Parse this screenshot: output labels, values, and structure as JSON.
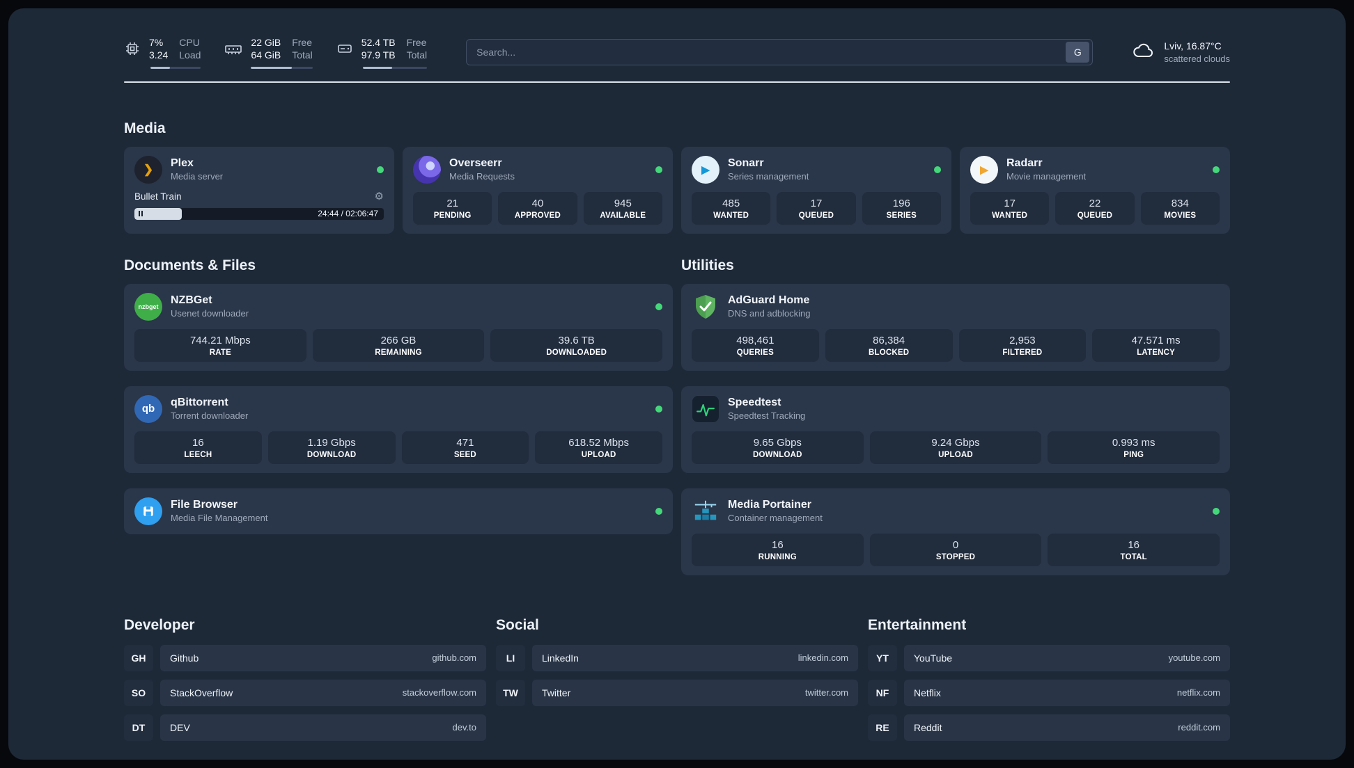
{
  "colors": {
    "status_online": "#44d87b"
  },
  "icons": {
    "plex_glyph": "❯",
    "sonarr_glyph": "▶",
    "radarr_glyph": "▶",
    "nzbget_text": "nzbget",
    "qbittorrent_text": "qb",
    "gear_glyph": "⚙"
  },
  "header": {
    "cpu": {
      "value_top": "7%",
      "value_bottom": "3.24",
      "label_top": "CPU",
      "label_bottom": "Load",
      "progress": 38
    },
    "ram": {
      "value_top": "22 GiB",
      "value_bottom": "64 GiB",
      "label_top": "Free",
      "label_bottom": "Total",
      "progress": 66
    },
    "disk": {
      "value_top": "52.4 TB",
      "value_bottom": "97.9 TB",
      "label_top": "Free",
      "label_bottom": "Total",
      "progress": 46
    },
    "search": {
      "placeholder": "Search...",
      "button": "G"
    },
    "weather": {
      "location": "Lviv, 16.87°C",
      "condition": "scattered clouds"
    }
  },
  "sections": {
    "media": {
      "title": "Media",
      "plex": {
        "name": "Plex",
        "subtitle": "Media server",
        "now_playing": "Bullet Train",
        "time": "24:44 / 02:06:47",
        "progress": 19
      },
      "overseerr": {
        "name": "Overseerr",
        "subtitle": "Media Requests",
        "stats": [
          {
            "value": "21",
            "label": "PENDING"
          },
          {
            "value": "40",
            "label": "APPROVED"
          },
          {
            "value": "945",
            "label": "AVAILABLE"
          }
        ]
      },
      "sonarr": {
        "name": "Sonarr",
        "subtitle": "Series management",
        "stats": [
          {
            "value": "485",
            "label": "WANTED"
          },
          {
            "value": "17",
            "label": "QUEUED"
          },
          {
            "value": "196",
            "label": "SERIES"
          }
        ]
      },
      "radarr": {
        "name": "Radarr",
        "subtitle": "Movie management",
        "stats": [
          {
            "value": "17",
            "label": "WANTED"
          },
          {
            "value": "22",
            "label": "QUEUED"
          },
          {
            "value": "834",
            "label": "MOVIES"
          }
        ]
      }
    },
    "documents": {
      "title": "Documents & Files",
      "nzbget": {
        "name": "NZBGet",
        "subtitle": "Usenet downloader",
        "stats": [
          {
            "value": "744.21 Mbps",
            "label": "RATE"
          },
          {
            "value": "266 GB",
            "label": "REMAINING"
          },
          {
            "value": "39.6 TB",
            "label": "DOWNLOADED"
          }
        ]
      },
      "qbittorrent": {
        "name": "qBittorrent",
        "subtitle": "Torrent downloader",
        "stats": [
          {
            "value": "16",
            "label": "LEECH"
          },
          {
            "value": "1.19 Gbps",
            "label": "DOWNLOAD"
          },
          {
            "value": "471",
            "label": "SEED"
          },
          {
            "value": "618.52 Mbps",
            "label": "UPLOAD"
          }
        ]
      },
      "filebrowser": {
        "name": "File Browser",
        "subtitle": "Media File Management"
      }
    },
    "utilities": {
      "title": "Utilities",
      "adguard": {
        "name": "AdGuard Home",
        "subtitle": "DNS and adblocking",
        "stats": [
          {
            "value": "498,461",
            "label": "QUERIES"
          },
          {
            "value": "86,384",
            "label": "BLOCKED"
          },
          {
            "value": "2,953",
            "label": "FILTERED"
          },
          {
            "value": "47.571 ms",
            "label": "LATENCY"
          }
        ]
      },
      "speedtest": {
        "name": "Speedtest",
        "subtitle": "Speedtest Tracking",
        "stats": [
          {
            "value": "9.65 Gbps",
            "label": "DOWNLOAD"
          },
          {
            "value": "9.24 Gbps",
            "label": "UPLOAD"
          },
          {
            "value": "0.993 ms",
            "label": "PING"
          }
        ]
      },
      "portainer": {
        "name": "Media Portainer",
        "subtitle": "Container management",
        "stats": [
          {
            "value": "16",
            "label": "RUNNING"
          },
          {
            "value": "0",
            "label": "STOPPED"
          },
          {
            "value": "16",
            "label": "TOTAL"
          }
        ]
      }
    },
    "developer": {
      "title": "Developer",
      "links": [
        {
          "abbr": "GH",
          "name": "Github",
          "url": "github.com"
        },
        {
          "abbr": "SO",
          "name": "StackOverflow",
          "url": "stackoverflow.com"
        },
        {
          "abbr": "DT",
          "name": "DEV",
          "url": "dev.to"
        }
      ]
    },
    "social": {
      "title": "Social",
      "links": [
        {
          "abbr": "LI",
          "name": "LinkedIn",
          "url": "linkedin.com"
        },
        {
          "abbr": "TW",
          "name": "Twitter",
          "url": "twitter.com"
        }
      ]
    },
    "entertainment": {
      "title": "Entertainment",
      "links": [
        {
          "abbr": "YT",
          "name": "YouTube",
          "url": "youtube.com"
        },
        {
          "abbr": "NF",
          "name": "Netflix",
          "url": "netflix.com"
        },
        {
          "abbr": "RE",
          "name": "Reddit",
          "url": "reddit.com"
        }
      ]
    }
  }
}
